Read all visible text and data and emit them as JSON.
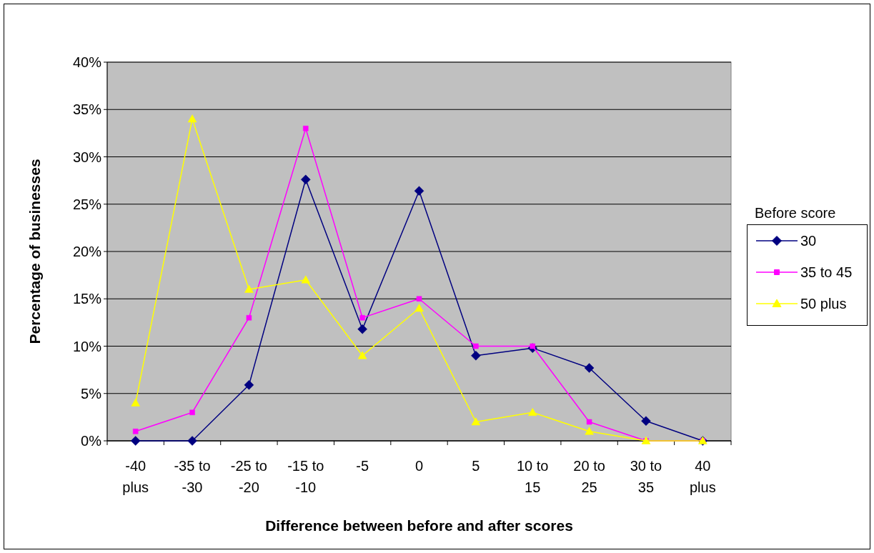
{
  "chart_data": {
    "type": "line",
    "xlabel": "Difference between before and after scores",
    "ylabel": "Percentage of businesses",
    "legend_title": "Before score",
    "categories": [
      "-40 plus",
      "-35 to -30",
      "-25 to -20",
      "-15 to -10",
      "-5",
      "0",
      "5",
      "10 to 15",
      "20 to 25",
      "30 to 35",
      "40 plus"
    ],
    "series": [
      {
        "name": "30",
        "color": "#000080",
        "marker": "diamond",
        "values": [
          0,
          0,
          5.9,
          27.6,
          11.8,
          26.4,
          9,
          9.8,
          7.7,
          2.1,
          0
        ]
      },
      {
        "name": "35 to 45",
        "color": "#ff00ff",
        "marker": "square",
        "values": [
          1,
          3,
          13,
          33,
          13,
          15,
          10,
          10,
          2,
          0,
          0
        ]
      },
      {
        "name": "50 plus",
        "color": "#ffff00",
        "marker": "triangle",
        "values": [
          4,
          34,
          16,
          17,
          9,
          14,
          2,
          3,
          1,
          0,
          0
        ]
      }
    ],
    "ylim": [
      0,
      40
    ],
    "yticks": [
      {
        "value": 0,
        "label": "0%"
      },
      {
        "value": 5,
        "label": "5%"
      },
      {
        "value": 10,
        "label": "10%"
      },
      {
        "value": 15,
        "label": "15%"
      },
      {
        "value": 20,
        "label": "20%"
      },
      {
        "value": 25,
        "label": "25%"
      },
      {
        "value": 30,
        "label": "30%"
      },
      {
        "value": 35,
        "label": "35%"
      },
      {
        "value": 40,
        "label": "40%"
      }
    ],
    "grid": "y",
    "legend": "right"
  }
}
